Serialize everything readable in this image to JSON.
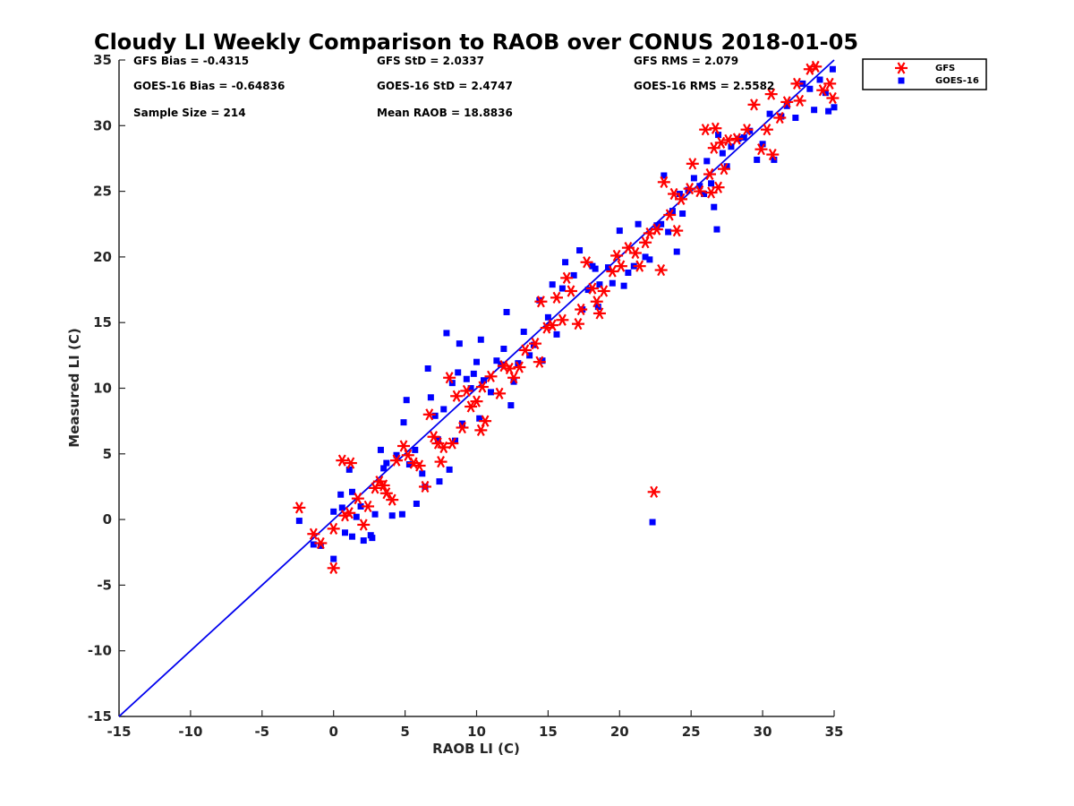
{
  "chart_data": {
    "type": "scatter",
    "title": "Cloudy LI Weekly Comparison to RAOB over CONUS 2018-01-05",
    "xlabel": "RAOB LI (C)",
    "ylabel": "Measured LI (C)",
    "xlim": [
      -15,
      35
    ],
    "ylim": [
      -15,
      35
    ],
    "xticks": [
      "-15",
      "-10",
      "-5",
      "0",
      "5",
      "10",
      "15",
      "20",
      "25",
      "30",
      "35"
    ],
    "yticks": [
      "-15",
      "-10",
      "-5",
      "0",
      "5",
      "10",
      "15",
      "20",
      "25",
      "30",
      "35"
    ],
    "grid": false,
    "legend_position": "outside-top-right",
    "stats": [
      [
        "GFS Bias = -0.4315",
        "GFS StD = 2.0337",
        "GFS RMS = 2.079"
      ],
      [
        "GOES-16 Bias = -0.64836",
        "GOES-16 StD = 2.4747",
        "GOES-16 RMS = 2.5582"
      ],
      [
        "Sample Size = 214",
        "Mean RAOB = 18.8836",
        ""
      ]
    ],
    "reference_line": {
      "type": "one-to-one",
      "color": "#0000ee",
      "from": [
        -15,
        -15
      ],
      "to": [
        35,
        35
      ]
    },
    "series": [
      {
        "name": "GFS",
        "marker": "asterisk",
        "color": "#ff0000",
        "points": [
          [
            -2.4,
            0.9
          ],
          [
            -1.4,
            -1.1
          ],
          [
            -0.9,
            -1.8
          ],
          [
            0.0,
            -3.7
          ],
          [
            0.0,
            -0.7
          ],
          [
            0.6,
            4.5
          ],
          [
            1.2,
            4.3
          ],
          [
            0.8,
            0.3
          ],
          [
            1.1,
            0.5
          ],
          [
            1.7,
            1.6
          ],
          [
            2.1,
            -0.4
          ],
          [
            2.4,
            1.0
          ],
          [
            2.9,
            2.4
          ],
          [
            3.2,
            2.9
          ],
          [
            3.5,
            2.6
          ],
          [
            3.7,
            2.0
          ],
          [
            4.1,
            1.5
          ],
          [
            4.4,
            4.5
          ],
          [
            4.9,
            5.6
          ],
          [
            5.2,
            4.9
          ],
          [
            5.6,
            4.3
          ],
          [
            6.0,
            4.1
          ],
          [
            6.4,
            2.5
          ],
          [
            6.7,
            8.0
          ],
          [
            7.0,
            6.3
          ],
          [
            7.3,
            5.8
          ],
          [
            7.5,
            4.4
          ],
          [
            7.7,
            5.5
          ],
          [
            8.1,
            10.8
          ],
          [
            8.3,
            5.8
          ],
          [
            8.6,
            9.4
          ],
          [
            9.0,
            7.0
          ],
          [
            9.3,
            9.8
          ],
          [
            9.6,
            8.6
          ],
          [
            10.0,
            9.0
          ],
          [
            10.3,
            6.8
          ],
          [
            10.4,
            10.1
          ],
          [
            10.6,
            7.5
          ],
          [
            11.0,
            10.9
          ],
          [
            11.6,
            9.6
          ],
          [
            11.9,
            11.7
          ],
          [
            12.3,
            11.5
          ],
          [
            12.6,
            10.8
          ],
          [
            13.0,
            11.6
          ],
          [
            13.4,
            12.9
          ],
          [
            14.1,
            13.4
          ],
          [
            14.4,
            12.0
          ],
          [
            14.5,
            16.6
          ],
          [
            14.9,
            14.6
          ],
          [
            15.3,
            14.8
          ],
          [
            15.6,
            16.9
          ],
          [
            16.0,
            15.2
          ],
          [
            16.3,
            18.4
          ],
          [
            16.6,
            17.4
          ],
          [
            17.1,
            14.9
          ],
          [
            17.3,
            16.0
          ],
          [
            17.7,
            19.6
          ],
          [
            18.1,
            17.6
          ],
          [
            18.4,
            16.6
          ],
          [
            18.6,
            15.7
          ],
          [
            18.9,
            17.4
          ],
          [
            19.5,
            18.9
          ],
          [
            19.8,
            20.1
          ],
          [
            20.1,
            19.3
          ],
          [
            20.6,
            20.7
          ],
          [
            21.1,
            20.3
          ],
          [
            21.4,
            19.3
          ],
          [
            21.8,
            21.1
          ],
          [
            22.1,
            21.8
          ],
          [
            22.4,
            2.1
          ],
          [
            22.6,
            22.1
          ],
          [
            22.9,
            19.0
          ],
          [
            23.1,
            25.7
          ],
          [
            23.5,
            23.2
          ],
          [
            23.8,
            24.8
          ],
          [
            24.0,
            22.0
          ],
          [
            24.3,
            24.4
          ],
          [
            24.9,
            25.2
          ],
          [
            25.1,
            27.1
          ],
          [
            25.6,
            25.0
          ],
          [
            26.0,
            29.7
          ],
          [
            26.3,
            26.3
          ],
          [
            26.4,
            24.9
          ],
          [
            26.6,
            28.3
          ],
          [
            26.7,
            29.8
          ],
          [
            26.9,
            25.3
          ],
          [
            27.1,
            28.7
          ],
          [
            27.3,
            26.7
          ],
          [
            27.6,
            28.9
          ],
          [
            28.2,
            29.0
          ],
          [
            28.9,
            29.7
          ],
          [
            29.4,
            31.6
          ],
          [
            29.9,
            28.2
          ],
          [
            30.3,
            29.7
          ],
          [
            30.6,
            32.4
          ],
          [
            30.7,
            27.8
          ],
          [
            31.2,
            30.6
          ],
          [
            31.7,
            31.8
          ],
          [
            32.4,
            33.2
          ],
          [
            32.6,
            31.9
          ],
          [
            33.3,
            34.3
          ],
          [
            33.7,
            34.5
          ],
          [
            34.2,
            32.7
          ],
          [
            34.7,
            33.2
          ],
          [
            34.9,
            32.1
          ]
        ]
      },
      {
        "name": "GOES-16",
        "marker": "square",
        "color": "#0000ff",
        "points": [
          [
            -2.4,
            -0.1
          ],
          [
            -1.4,
            -1.9
          ],
          [
            -0.9,
            -2.0
          ],
          [
            0.0,
            -3.0
          ],
          [
            0.0,
            0.6
          ],
          [
            0.5,
            1.9
          ],
          [
            0.6,
            0.9
          ],
          [
            0.8,
            -1.0
          ],
          [
            1.1,
            3.8
          ],
          [
            1.3,
            2.1
          ],
          [
            1.3,
            -1.3
          ],
          [
            1.6,
            0.2
          ],
          [
            1.9,
            1.0
          ],
          [
            2.1,
            -1.6
          ],
          [
            2.6,
            -1.2
          ],
          [
            2.7,
            -1.4
          ],
          [
            2.9,
            0.4
          ],
          [
            3.3,
            5.3
          ],
          [
            3.5,
            3.9
          ],
          [
            3.7,
            4.3
          ],
          [
            4.1,
            0.3
          ],
          [
            4.4,
            4.9
          ],
          [
            4.8,
            0.4
          ],
          [
            4.9,
            7.4
          ],
          [
            5.1,
            9.1
          ],
          [
            5.3,
            4.2
          ],
          [
            5.7,
            5.3
          ],
          [
            5.8,
            1.2
          ],
          [
            6.2,
            3.5
          ],
          [
            6.4,
            2.5
          ],
          [
            6.6,
            11.5
          ],
          [
            6.8,
            9.3
          ],
          [
            7.1,
            7.9
          ],
          [
            7.3,
            6.1
          ],
          [
            7.4,
            2.9
          ],
          [
            7.7,
            8.4
          ],
          [
            7.9,
            14.2
          ],
          [
            8.1,
            3.8
          ],
          [
            8.3,
            10.4
          ],
          [
            8.5,
            6.0
          ],
          [
            8.7,
            11.2
          ],
          [
            8.8,
            13.4
          ],
          [
            9.0,
            7.3
          ],
          [
            9.3,
            10.7
          ],
          [
            9.6,
            10.0
          ],
          [
            9.8,
            11.1
          ],
          [
            10.0,
            12.0
          ],
          [
            10.2,
            7.7
          ],
          [
            10.3,
            13.7
          ],
          [
            10.5,
            10.6
          ],
          [
            11.0,
            9.7
          ],
          [
            11.4,
            12.1
          ],
          [
            11.7,
            11.8
          ],
          [
            11.9,
            13.0
          ],
          [
            12.1,
            15.8
          ],
          [
            12.4,
            8.7
          ],
          [
            12.6,
            10.5
          ],
          [
            12.9,
            11.9
          ],
          [
            13.3,
            14.3
          ],
          [
            13.7,
            12.5
          ],
          [
            14.0,
            13.3
          ],
          [
            14.4,
            16.7
          ],
          [
            14.6,
            12.1
          ],
          [
            15.0,
            15.4
          ],
          [
            15.3,
            17.9
          ],
          [
            15.6,
            14.1
          ],
          [
            16.0,
            17.6
          ],
          [
            16.2,
            19.6
          ],
          [
            16.8,
            18.6
          ],
          [
            17.2,
            20.5
          ],
          [
            17.4,
            16.0
          ],
          [
            17.8,
            17.5
          ],
          [
            18.1,
            19.3
          ],
          [
            18.3,
            19.1
          ],
          [
            18.5,
            16.2
          ],
          [
            18.6,
            17.9
          ],
          [
            19.2,
            19.2
          ],
          [
            19.5,
            18.0
          ],
          [
            20.0,
            22.0
          ],
          [
            20.3,
            17.8
          ],
          [
            20.6,
            18.8
          ],
          [
            21.0,
            19.3
          ],
          [
            21.3,
            22.5
          ],
          [
            21.8,
            20.0
          ],
          [
            22.1,
            19.8
          ],
          [
            22.3,
            -0.2
          ],
          [
            22.6,
            22.4
          ],
          [
            22.9,
            22.5
          ],
          [
            23.1,
            26.2
          ],
          [
            23.4,
            21.9
          ],
          [
            23.7,
            23.5
          ],
          [
            24.0,
            20.4
          ],
          [
            24.2,
            24.8
          ],
          [
            24.4,
            23.3
          ],
          [
            24.8,
            25.1
          ],
          [
            25.2,
            26.0
          ],
          [
            25.6,
            25.4
          ],
          [
            25.9,
            24.8
          ],
          [
            26.1,
            27.3
          ],
          [
            26.4,
            25.6
          ],
          [
            26.6,
            23.8
          ],
          [
            26.8,
            22.1
          ],
          [
            26.9,
            29.3
          ],
          [
            27.2,
            27.9
          ],
          [
            27.5,
            26.9
          ],
          [
            27.8,
            28.4
          ],
          [
            28.3,
            29.0
          ],
          [
            28.7,
            29.1
          ],
          [
            29.1,
            29.6
          ],
          [
            29.6,
            27.4
          ],
          [
            30.0,
            28.6
          ],
          [
            30.5,
            30.9
          ],
          [
            30.8,
            27.4
          ],
          [
            31.3,
            30.7
          ],
          [
            31.7,
            31.5
          ],
          [
            32.3,
            30.6
          ],
          [
            32.8,
            33.2
          ],
          [
            33.3,
            32.8
          ],
          [
            33.6,
            31.2
          ],
          [
            34.0,
            33.5
          ],
          [
            34.4,
            32.5
          ],
          [
            34.6,
            31.1
          ],
          [
            34.9,
            34.3
          ],
          [
            35.0,
            31.4
          ]
        ]
      }
    ]
  }
}
